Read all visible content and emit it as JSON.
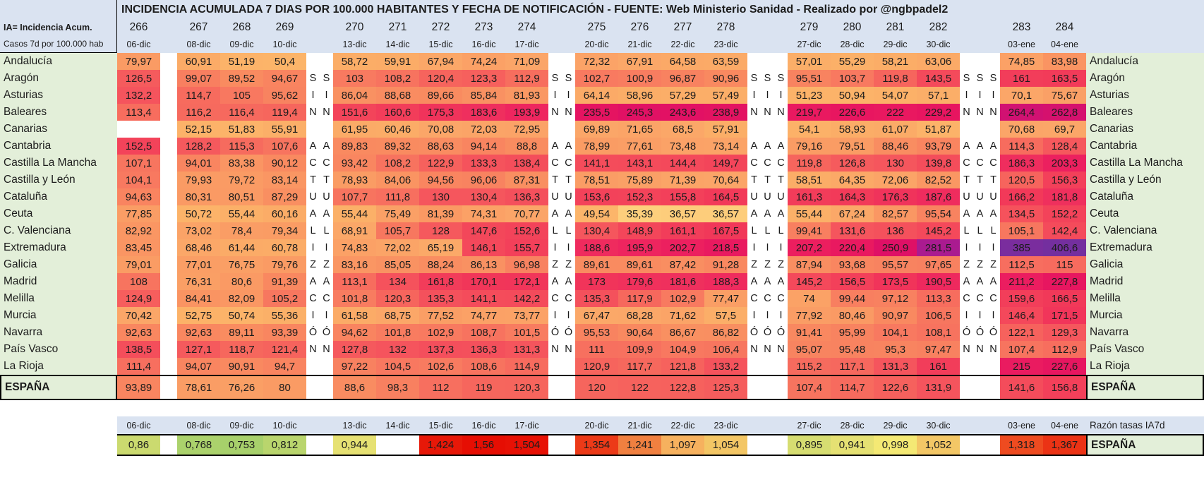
{
  "chart_data": {
    "type": "heatmap",
    "title": "INCIDENCIA ACUMULADA 7 DIAS POR 100.000 HABITANTES Y FECHA DE NOTIFICACIÓN - FUENTE: Web Ministerio Sanidad - Realizado por @ngbpadel2",
    "legend_line1": "IA= Incidencia Acum.",
    "legend_line2": "Casos 7d  por 100.000 hab",
    "day_numbers": [
      "266",
      "267",
      "268",
      "269",
      "270",
      "271",
      "272",
      "273",
      "274",
      "275",
      "276",
      "277",
      "278",
      "279",
      "280",
      "281",
      "282",
      "283",
      "284"
    ],
    "dates": [
      "06-dic",
      "08-dic",
      "09-dic",
      "10-dic",
      "13-dic",
      "14-dic",
      "15-dic",
      "16-dic",
      "17-dic",
      "20-dic",
      "21-dic",
      "22-dic",
      "23-dic",
      "27-dic",
      "28-dic",
      "29-dic",
      "30-dic",
      "03-ene",
      "04-ene"
    ],
    "groups": [
      [
        0
      ],
      [
        1,
        2,
        3
      ],
      [
        4,
        5,
        6,
        7,
        8
      ],
      [
        9,
        10,
        11,
        12
      ],
      [
        13,
        14,
        15,
        16
      ],
      [
        17,
        18
      ]
    ],
    "gap_letters": [
      0,
      2,
      2,
      3,
      3
    ],
    "vertical_message": "SIN ACTUALIZACIÓN",
    "row_letters": [
      "",
      "S",
      "I",
      "N",
      "",
      "A",
      "C",
      "T",
      "U",
      "A",
      "L",
      "I",
      "Z",
      "A",
      "C",
      "I",
      "Ó",
      "N",
      ""
    ],
    "rows": [
      {
        "name": "Andalucía",
        "values": [
          "79,97",
          "60,91",
          "51,19",
          "50,4",
          "58,72",
          "59,91",
          "67,94",
          "74,24",
          "71,09",
          "72,32",
          "67,91",
          "64,58",
          "63,59",
          "57,01",
          "55,29",
          "58,21",
          "63,06",
          "74,85",
          "83,98"
        ]
      },
      {
        "name": "Aragón",
        "values": [
          "126,5",
          "99,07",
          "89,52",
          "94,67",
          "103",
          "108,2",
          "120,4",
          "123,3",
          "112,9",
          "102,7",
          "100,9",
          "96,87",
          "90,96",
          "95,51",
          "103,7",
          "119,8",
          "143,5",
          "161",
          "163,5"
        ]
      },
      {
        "name": "Asturias",
        "values": [
          "132,2",
          "114,7",
          "105",
          "95,62",
          "86,04",
          "88,68",
          "89,66",
          "85,84",
          "81,93",
          "64,14",
          "58,96",
          "57,29",
          "57,49",
          "51,23",
          "50,94",
          "54,07",
          "57,1",
          "70,1",
          "75,67"
        ]
      },
      {
        "name": "Baleares",
        "values": [
          "113,4",
          "116,2",
          "116,4",
          "119,4",
          "151,6",
          "160,6",
          "175,3",
          "183,6",
          "193,9",
          "235,5",
          "245,3",
          "243,6",
          "238,9",
          "219,7",
          "226,6",
          "222",
          "229,2",
          "264,4",
          "262,8"
        ]
      },
      {
        "name": "Canarias",
        "values": [
          null,
          "52,15",
          "51,83",
          "55,91",
          "61,95",
          "60,46",
          "70,08",
          "72,03",
          "72,95",
          "69,89",
          "71,65",
          "68,5",
          "57,91",
          "54,1",
          "58,93",
          "61,07",
          "51,87",
          "70,68",
          "69,7"
        ]
      },
      {
        "name": "Cantabria",
        "values": [
          "152,5",
          "128,2",
          "115,3",
          "107,6",
          "89,83",
          "89,32",
          "88,63",
          "94,14",
          "88,8",
          "78,99",
          "77,61",
          "73,48",
          "73,14",
          "79,16",
          "79,51",
          "88,46",
          "93,79",
          "114,3",
          "128,4"
        ]
      },
      {
        "name": "Castilla La Mancha",
        "values": [
          "107,1",
          "94,01",
          "83,38",
          "90,12",
          "93,42",
          "108,2",
          "122,9",
          "133,3",
          "138,4",
          "141,1",
          "143,1",
          "144,4",
          "149,7",
          "119,8",
          "126,8",
          "130",
          "139,8",
          "186,3",
          "203,3"
        ]
      },
      {
        "name": "Castilla y León",
        "values": [
          "104,1",
          "79,93",
          "79,72",
          "83,14",
          "78,93",
          "84,06",
          "94,56",
          "96,06",
          "87,31",
          "78,51",
          "75,89",
          "71,39",
          "70,64",
          "58,51",
          "64,35",
          "72,06",
          "82,52",
          "120,5",
          "156,3"
        ]
      },
      {
        "name": "Cataluña",
        "values": [
          "94,63",
          "80,31",
          "80,51",
          "87,29",
          "107,7",
          "111,8",
          "130",
          "130,4",
          "136,3",
          "153,6",
          "152,3",
          "155,8",
          "164,5",
          "161,3",
          "164,3",
          "176,3",
          "187,6",
          "166,2",
          "181,8"
        ]
      },
      {
        "name": "Ceuta",
        "values": [
          "77,85",
          "50,72",
          "55,44",
          "60,16",
          "55,44",
          "75,49",
          "81,39",
          "74,31",
          "70,77",
          "49,54",
          "35,39",
          "36,57",
          "36,57",
          "55,44",
          "67,24",
          "82,57",
          "95,54",
          "134,5",
          "152,2"
        ]
      },
      {
        "name": "C. Valenciana",
        "values": [
          "82,92",
          "73,02",
          "78,4",
          "79,34",
          "68,91",
          "105,7",
          "128",
          "147,6",
          "152,6",
          "130,4",
          "148,9",
          "161,1",
          "167,5",
          "99,41",
          "131,6",
          "136",
          "145,2",
          "105,1",
          "142,4"
        ]
      },
      {
        "name": "Extremadura",
        "values": [
          "83,45",
          "68,46",
          "61,44",
          "60,78",
          "74,83",
          "72,02",
          "65,19",
          "146,1",
          "155,7",
          "188,6",
          "195,9",
          "202,7",
          "218,5",
          "207,2",
          "220,4",
          "250,9",
          "281,5",
          "385",
          "406,6"
        ]
      },
      {
        "name": "Galicia",
        "values": [
          "79,01",
          "77,01",
          "76,75",
          "79,76",
          "83,16",
          "85,05",
          "88,24",
          "86,13",
          "96,98",
          "89,61",
          "89,61",
          "87,42",
          "91,28",
          "87,94",
          "93,68",
          "95,57",
          "97,65",
          "112,5",
          "115"
        ]
      },
      {
        "name": "Madrid",
        "values": [
          "108",
          "76,31",
          "80,6",
          "91,39",
          "113,1",
          "134",
          "161,8",
          "170,1",
          "172,1",
          "173",
          "179,6",
          "181,6",
          "188,3",
          "145,2",
          "156,5",
          "173,5",
          "190,5",
          "211,2",
          "227,8"
        ]
      },
      {
        "name": "Melilla",
        "values": [
          "124,9",
          "84,41",
          "82,09",
          "105,2",
          "101,8",
          "120,3",
          "135,3",
          "141,1",
          "142,2",
          "135,3",
          "117,9",
          "102,9",
          "77,47",
          "74",
          "99,44",
          "97,12",
          "113,3",
          "159,6",
          "166,5"
        ]
      },
      {
        "name": "Murcia",
        "values": [
          "70,42",
          "52,75",
          "50,74",
          "55,36",
          "61,58",
          "68,75",
          "77,52",
          "74,77",
          "73,77",
          "67,47",
          "68,28",
          "71,62",
          "57,5",
          "77,92",
          "80,46",
          "90,97",
          "106,5",
          "146,4",
          "171,5"
        ]
      },
      {
        "name": "Navarra",
        "values": [
          "92,63",
          "92,63",
          "89,11",
          "93,39",
          "94,62",
          "101,8",
          "102,9",
          "108,7",
          "101,5",
          "95,53",
          "90,64",
          "86,67",
          "86,82",
          "91,41",
          "95,99",
          "104,1",
          "108,1",
          "122,1",
          "129,3"
        ]
      },
      {
        "name": "País Vasco",
        "values": [
          "138,5",
          "127,1",
          "118,7",
          "121,4",
          "127,8",
          "132",
          "137,3",
          "136,3",
          "131,3",
          "111",
          "109,9",
          "104,9",
          "106,4",
          "95,07",
          "95,48",
          "95,3",
          "97,47",
          "107,4",
          "112,9"
        ]
      },
      {
        "name": "La Rioja",
        "values": [
          "111,4",
          "94,07",
          "90,91",
          "94,7",
          "97,22",
          "104,5",
          "102,6",
          "108,6",
          "114,9",
          "120,9",
          "117,7",
          "121,8",
          "133,2",
          "115,2",
          "117,1",
          "131,3",
          "161",
          "215",
          "227,6"
        ]
      }
    ],
    "total_row": {
      "name": "ESPAÑA",
      "values": [
        "93,89",
        "78,61",
        "76,26",
        "80",
        "88,6",
        "98,3",
        "112",
        "119",
        "120,3",
        "120",
        "122",
        "122,8",
        "125,3",
        "107,4",
        "114,7",
        "122,6",
        "131,9",
        "141,6",
        "156,8"
      ]
    },
    "ratio_row": {
      "header_label": "Razón tasas IA7d",
      "name": "ESPAÑA",
      "values": [
        "0,86",
        "0,768",
        "0,753",
        "0,812",
        "0,944",
        null,
        "1,424",
        "1,56",
        "1,504",
        "1,354",
        "1,241",
        "1,097",
        "1,054",
        "0,895",
        "0,941",
        "0,998",
        "1,052",
        "1,318",
        "1,367"
      ]
    },
    "colors": {
      "header_bg": "#dae3f1",
      "label_bg": "#e3efd9",
      "ia_scale": [
        [
          35,
          "#fdd07d"
        ],
        [
          50,
          "#fcb469"
        ],
        [
          60,
          "#fbac67"
        ],
        [
          70,
          "#fba668"
        ],
        [
          80,
          "#fa9b64"
        ],
        [
          90,
          "#f98a60"
        ],
        [
          100,
          "#f87e60"
        ],
        [
          110,
          "#f7715f"
        ],
        [
          120,
          "#f6655d"
        ],
        [
          130,
          "#f5565d"
        ],
        [
          140,
          "#f44d5b"
        ],
        [
          155,
          "#f3415a"
        ],
        [
          170,
          "#f13659"
        ],
        [
          185,
          "#ef2e5e"
        ],
        [
          200,
          "#ed215f"
        ],
        [
          215,
          "#ea1b60"
        ],
        [
          230,
          "#e71560"
        ],
        [
          245,
          "#e11164"
        ],
        [
          260,
          "#dc0f69"
        ],
        [
          280,
          "#ab1a90"
        ],
        [
          310,
          "#8f2699"
        ],
        [
          420,
          "#7030a0"
        ]
      ],
      "ratio_scale": [
        [
          0.75,
          "#a6d06b"
        ],
        [
          0.81,
          "#b8d56d"
        ],
        [
          0.86,
          "#cbda6f"
        ],
        [
          0.9,
          "#d8dd71"
        ],
        [
          0.95,
          "#e8e273"
        ],
        [
          1.0,
          "#f4e974"
        ],
        [
          1.05,
          "#f3c866"
        ],
        [
          1.1,
          "#f6af5d"
        ],
        [
          1.24,
          "#f08140"
        ],
        [
          1.32,
          "#ee4a1f"
        ],
        [
          1.43,
          "#e71507"
        ],
        [
          1.6,
          "#e60c02"
        ]
      ]
    }
  }
}
